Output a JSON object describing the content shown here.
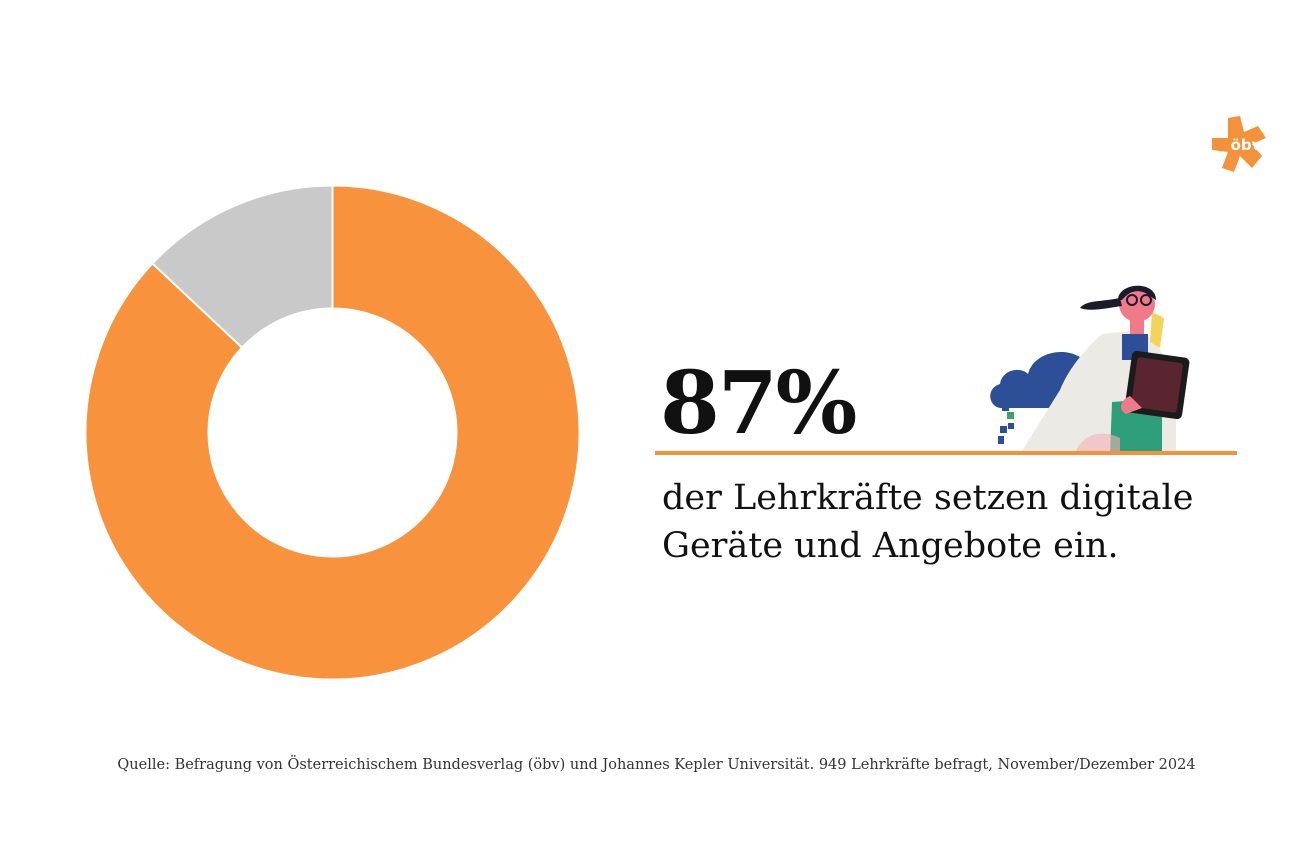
{
  "chart_data": {
    "type": "pie",
    "variant": "donut",
    "segments": [
      {
        "value": 87,
        "color": "#f9923c"
      },
      {
        "value": 13,
        "color": "#c9c9c9"
      }
    ]
  },
  "headline": {
    "percent": "87%",
    "line1": "der Lehrkräfte setzen digitale",
    "line2": "Geräte und Angebote ein."
  },
  "logo": {
    "text": "öbv",
    "color": "#f4923c",
    "icon": "star-icon"
  },
  "source": "Quelle: Befragung von Österreichischem Bundesverlag (öbv) und Johannes Kepler Universität. 949 Lehrkräfte befragt, November/Dezember 2024",
  "colors": {
    "accent": "#f4923c",
    "gray": "#c9c9c9",
    "text": "#111111"
  }
}
